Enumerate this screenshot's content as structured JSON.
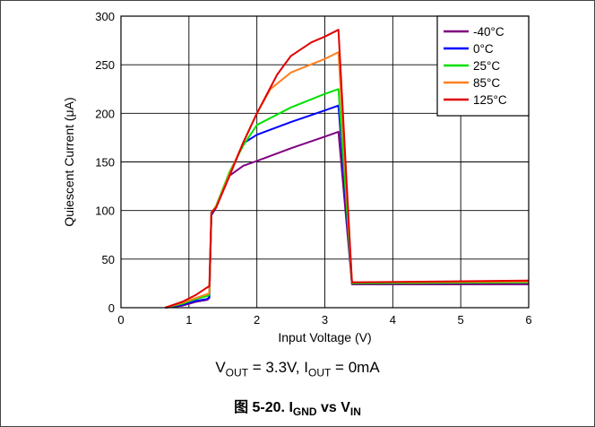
{
  "chart_data": {
    "type": "line",
    "xlabel": "Input Voltage (V)",
    "ylabel": "Quiescent Current (μA)",
    "xlim": [
      0,
      6
    ],
    "ylim": [
      0,
      300
    ],
    "x_ticks": [
      "0",
      "1",
      "2",
      "3",
      "4",
      "5",
      "6"
    ],
    "y_ticks": [
      "0",
      "50",
      "100",
      "150",
      "200",
      "250",
      "300"
    ],
    "grid": true,
    "legend_position": "top-right",
    "series": [
      {
        "name": "-40°C",
        "color": "#800080",
        "points": [
          [
            0.65,
            0
          ],
          [
            0.9,
            2
          ],
          [
            1.1,
            6
          ],
          [
            1.27,
            8
          ],
          [
            1.3,
            10
          ],
          [
            1.33,
            95
          ],
          [
            1.4,
            103
          ],
          [
            1.5,
            120
          ],
          [
            1.6,
            136
          ],
          [
            1.8,
            146
          ],
          [
            2.0,
            151
          ],
          [
            2.5,
            164
          ],
          [
            3.0,
            176
          ],
          [
            3.2,
            181
          ],
          [
            3.4,
            24
          ],
          [
            6.0,
            24
          ]
        ]
      },
      {
        "name": "0°C",
        "color": "#0000ff",
        "points": [
          [
            0.65,
            0
          ],
          [
            0.9,
            3
          ],
          [
            1.1,
            7
          ],
          [
            1.27,
            9
          ],
          [
            1.3,
            11
          ],
          [
            1.33,
            96
          ],
          [
            1.4,
            104
          ],
          [
            1.6,
            138
          ],
          [
            1.8,
            169
          ],
          [
            2.0,
            178
          ],
          [
            2.5,
            191
          ],
          [
            3.0,
            203
          ],
          [
            3.2,
            208
          ],
          [
            3.4,
            25
          ],
          [
            6.0,
            26
          ]
        ]
      },
      {
        "name": "25°C",
        "color": "#00e000",
        "points": [
          [
            0.65,
            0
          ],
          [
            0.9,
            4
          ],
          [
            1.1,
            9
          ],
          [
            1.27,
            12
          ],
          [
            1.3,
            13
          ],
          [
            1.33,
            97
          ],
          [
            1.4,
            105
          ],
          [
            1.6,
            140
          ],
          [
            1.8,
            167
          ],
          [
            2.0,
            188
          ],
          [
            2.5,
            206
          ],
          [
            3.0,
            220
          ],
          [
            3.2,
            225
          ],
          [
            3.4,
            25
          ],
          [
            6.0,
            26
          ]
        ]
      },
      {
        "name": "85°C",
        "color": "#ff8020",
        "points": [
          [
            0.65,
            0
          ],
          [
            0.9,
            5
          ],
          [
            1.1,
            10
          ],
          [
            1.27,
            14
          ],
          [
            1.3,
            15
          ],
          [
            1.33,
            98
          ],
          [
            1.4,
            104
          ],
          [
            1.6,
            138
          ],
          [
            1.8,
            170
          ],
          [
            2.0,
            200
          ],
          [
            2.2,
            225
          ],
          [
            2.5,
            242
          ],
          [
            3.0,
            256
          ],
          [
            3.2,
            263
          ],
          [
            3.4,
            26
          ],
          [
            6.0,
            27
          ]
        ]
      },
      {
        "name": "125°C",
        "color": "#e00000",
        "points": [
          [
            0.65,
            0
          ],
          [
            0.9,
            6
          ],
          [
            1.1,
            13
          ],
          [
            1.27,
            21
          ],
          [
            1.3,
            22
          ],
          [
            1.33,
            98
          ],
          [
            1.4,
            103
          ],
          [
            1.6,
            136
          ],
          [
            1.8,
            170
          ],
          [
            2.0,
            200
          ],
          [
            2.3,
            240
          ],
          [
            2.5,
            259
          ],
          [
            2.8,
            273
          ],
          [
            3.0,
            279
          ],
          [
            3.2,
            286
          ],
          [
            3.4,
            26
          ],
          [
            6.0,
            28
          ]
        ]
      }
    ]
  },
  "conditions": {
    "v_main": "V",
    "v_sub": "OUT",
    "v_value": " = 3.3V, ",
    "i_main": "I",
    "i_sub": "OUT",
    "i_value": " = 0mA"
  },
  "caption": {
    "figure_number": "图 5-20. ",
    "i_main": "I",
    "i_sub": "GND",
    "vs": " vs ",
    "v_main": "V",
    "v_sub": "IN"
  }
}
